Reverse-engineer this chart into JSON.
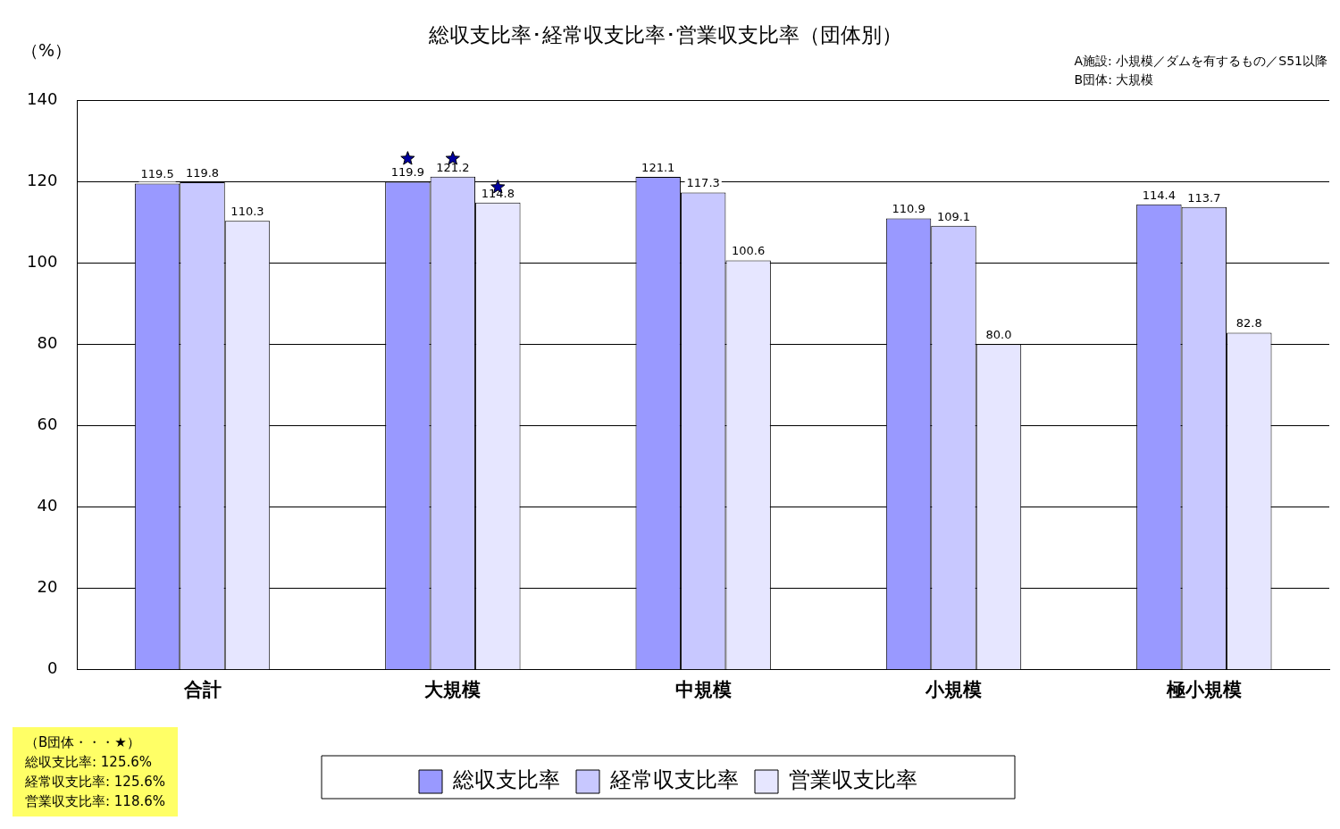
{
  "chart_data": {
    "type": "bar",
    "title": "総収支比率･経常収支比率･営業収支比率（団体別）",
    "ylabel": "（%）",
    "categories": [
      "合計",
      "大規模",
      "中規模",
      "小規模",
      "極小規模"
    ],
    "series": [
      {
        "name": "総収支比率",
        "color": "#9999ff",
        "values": [
          119.5,
          119.9,
          121.1,
          110.9,
          114.4
        ],
        "value_labels": [
          "119.5",
          "119.9",
          "121.1",
          "110.9",
          "114.4"
        ]
      },
      {
        "name": "経常収支比率",
        "color": "#c8c8ff",
        "values": [
          119.8,
          121.2,
          117.3,
          109.1,
          113.7
        ],
        "value_labels": [
          "119.8",
          "121.2",
          "117.3",
          "109.1",
          "113.7"
        ]
      },
      {
        "name": "営業収支比率",
        "color": "#e6e6ff",
        "values": [
          110.3,
          114.8,
          100.6,
          80.0,
          82.8
        ],
        "value_labels": [
          "110.3",
          "114.8",
          "100.6",
          "80.0",
          "82.8"
        ]
      },
      {
        "type": "scatter",
        "color": "#0000a0",
        "marker": "star",
        "x": [
          "大規模",
          "大規模",
          "大規模"
        ],
        "values": [
          125.6,
          125.6,
          118.6
        ]
      }
    ],
    "ylim": [
      0,
      140
    ],
    "yticks": [
      0,
      20,
      40,
      60,
      80,
      100,
      120,
      140
    ],
    "grid": "y",
    "legend": "bottom",
    "annotations": [
      "A施設: 小規模／ダムを有するもの／S51以降",
      "B団体: 大規模",
      "（B団体・・・★）",
      "総収支比率: 125.6%",
      "経常収支比率: 125.6%",
      "営業収支比率: 118.6%"
    ]
  }
}
